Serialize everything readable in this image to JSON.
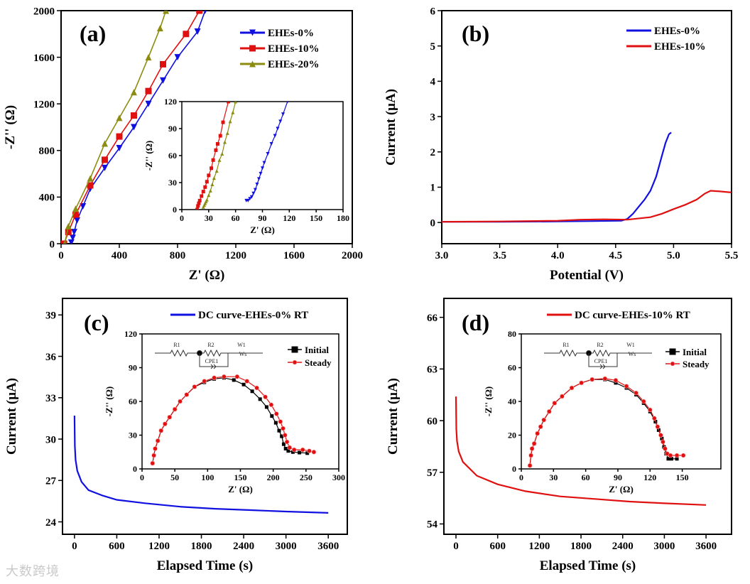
{
  "watermark": "大数跨境",
  "circuit_labels": {
    "r1": "R1",
    "r2": "R2",
    "w1": "W1",
    "cpe": "CPE1",
    "ws": "Ws"
  },
  "chart_data": [
    {
      "id": "a",
      "type": "line",
      "panel_label": "(a)",
      "xlabel": "Z' (Ω)",
      "ylabel": "-Z'' (Ω)",
      "xlim": [
        0,
        2000
      ],
      "ylim": [
        0,
        2000
      ],
      "xticks": [
        "0",
        "400",
        "800",
        "1200",
        "1600",
        "2000"
      ],
      "yticks": [
        "0",
        "400",
        "800",
        "1200",
        "1600",
        "2000"
      ],
      "legend": "top-right",
      "series": [
        {
          "name": "EHEs-0%",
          "color": "#1010e0",
          "marker": "tri-down",
          "x": [
            70,
            80,
            90,
            110,
            150,
            200,
            300,
            400,
            500,
            600,
            700,
            800,
            937,
            990
          ],
          "y": [
            10,
            50,
            100,
            200,
            320,
            470,
            650,
            820,
            1000,
            1200,
            1400,
            1600,
            1820,
            2000
          ]
        },
        {
          "name": "EHEs-10%",
          "color": "#e01010",
          "marker": "square",
          "x": [
            20,
            50,
            100,
            200,
            300,
            400,
            500,
            600,
            700,
            858,
            950
          ],
          "y": [
            0,
            100,
            250,
            500,
            720,
            920,
            1100,
            1310,
            1540,
            1800,
            2000
          ]
        },
        {
          "name": "EHEs-20%",
          "color": "#8c8c10",
          "marker": "tri-up",
          "x": [
            25,
            50,
            100,
            200,
            300,
            400,
            500,
            600,
            680,
            720
          ],
          "y": [
            0,
            150,
            300,
            560,
            860,
            1080,
            1300,
            1600,
            1850,
            2000
          ]
        }
      ]
    },
    {
      "id": "a_in",
      "type": "line",
      "inset_of": "a",
      "xlabel": "Z' (Ω)",
      "ylabel": "-Z'' (Ω)",
      "xlim": [
        0,
        180
      ],
      "ylim": [
        0,
        120
      ],
      "xticks": [
        "0",
        "30",
        "60",
        "90",
        "120",
        "150",
        "180"
      ],
      "yticks": [
        "0",
        "30",
        "60",
        "90",
        "120"
      ],
      "series": [
        {
          "name": "EHEs-0%",
          "color": "#1010e0",
          "marker": "tri-down-small",
          "x": [
            72,
            74,
            76,
            78,
            80,
            82,
            84,
            86,
            88,
            90,
            92,
            96,
            100,
            104,
            107,
            110,
            113,
            118
          ],
          "y": [
            10,
            10,
            12,
            14,
            18,
            22,
            28,
            34,
            40,
            46,
            52,
            62,
            73,
            82,
            90,
            98,
            106,
            120
          ]
        },
        {
          "name": "EHEs-10%",
          "color": "#e01010",
          "marker": "square-small",
          "x": [
            17,
            18,
            19,
            20,
            22,
            24,
            26,
            28,
            30,
            33,
            35,
            38,
            40,
            43,
            46,
            52
          ],
          "y": [
            0,
            4,
            7,
            10,
            15,
            20,
            25,
            31,
            38,
            46,
            55,
            66,
            73,
            82,
            97,
            120
          ]
        },
        {
          "name": "EHEs-20%",
          "color": "#8c8c10",
          "marker": "tri-up-small",
          "x": [
            24,
            25,
            26,
            27,
            28,
            30,
            32,
            34,
            36,
            39,
            42,
            45,
            48,
            51,
            54,
            57,
            60
          ],
          "y": [
            3,
            5,
            7,
            9,
            11,
            16,
            21,
            28,
            35,
            43,
            55,
            62,
            75,
            85,
            98,
            108,
            120
          ]
        }
      ]
    },
    {
      "id": "b",
      "type": "line",
      "panel_label": "(b)",
      "xlabel": "Potential (V)",
      "ylabel": "Current (μA)",
      "xlim": [
        3.0,
        5.5
      ],
      "ylim": [
        -0.6,
        6
      ],
      "xticks": [
        "3.0",
        "3.5",
        "4.0",
        "4.5",
        "5.0",
        "5.5"
      ],
      "yticks": [
        "0",
        "1",
        "2",
        "3",
        "4",
        "5",
        "6"
      ],
      "legend": "top-right",
      "series": [
        {
          "name": "EHEs-0%",
          "color": "#1010e0",
          "marker": "none",
          "x": [
            3.0,
            3.5,
            4.0,
            4.3,
            4.55,
            4.6,
            4.65,
            4.7,
            4.75,
            4.8,
            4.85,
            4.9,
            4.93,
            4.96,
            4.98
          ],
          "y": [
            0.02,
            0.02,
            0.03,
            0.04,
            0.05,
            0.1,
            0.25,
            0.45,
            0.65,
            0.9,
            1.3,
            1.9,
            2.25,
            2.5,
            2.55
          ]
        },
        {
          "name": "EHEs-10%",
          "color": "#e01010",
          "marker": "none",
          "x": [
            3.0,
            3.5,
            4.0,
            4.2,
            4.4,
            4.6,
            4.8,
            4.9,
            5.0,
            5.1,
            5.2,
            5.27,
            5.32,
            5.4,
            5.5
          ],
          "y": [
            0.02,
            0.03,
            0.05,
            0.08,
            0.09,
            0.08,
            0.15,
            0.25,
            0.38,
            0.5,
            0.65,
            0.82,
            0.9,
            0.88,
            0.85
          ]
        }
      ]
    },
    {
      "id": "c",
      "type": "line",
      "panel_label": "(c)",
      "xlabel": "Elapsed Time (s)",
      "ylabel": "Current (μA)",
      "xlim": [
        -170,
        3870
      ],
      "ylim": [
        23.1,
        40.2
      ],
      "xticks": [
        "0",
        "600",
        "1200",
        "1800",
        "2400",
        "3000",
        "3600"
      ],
      "yticks": [
        "24",
        "27",
        "30",
        "33",
        "36",
        "39"
      ],
      "legend": "top-right",
      "series": [
        {
          "name": "DC curve-EHEs-0%  RT",
          "color": "#1010e0",
          "marker": "none",
          "x": [
            0,
            5,
            15,
            40,
            100,
            200,
            400,
            600,
            1000,
            1500,
            2000,
            2500,
            3000,
            3600
          ],
          "y": [
            31.7,
            29.5,
            28.5,
            27.7,
            26.9,
            26.3,
            25.9,
            25.6,
            25.35,
            25.1,
            24.95,
            24.85,
            24.75,
            24.65
          ]
        }
      ]
    },
    {
      "id": "c_in",
      "type": "line",
      "inset_of": "c",
      "xlabel": "Z' (Ω)",
      "ylabel": "-Z'' (Ω)",
      "xlim": [
        0,
        300
      ],
      "ylim": [
        0,
        120
      ],
      "xticks": [
        "0",
        "50",
        "100",
        "150",
        "200",
        "250",
        "300"
      ],
      "yticks": [
        "0",
        "30",
        "60",
        "90",
        "120"
      ],
      "legend": "top-right",
      "circuit": true,
      "series": [
        {
          "name": "Initial",
          "color": "#000000",
          "marker": "square-small",
          "x": [
            16,
            18,
            20,
            24,
            29,
            35,
            42,
            50,
            58,
            68,
            80,
            95,
            110,
            125,
            140,
            155,
            168,
            180,
            190,
            198,
            204,
            209,
            213,
            216,
            219,
            223,
            230,
            240,
            252
          ],
          "y": [
            5,
            12,
            18,
            25,
            34,
            40,
            46,
            53,
            60,
            66,
            73,
            77,
            80,
            81,
            79,
            75,
            69,
            62,
            55,
            47,
            41,
            34,
            29,
            22,
            18,
            16,
            15,
            14.5,
            14
          ]
        },
        {
          "name": "Steady",
          "color": "#e01010",
          "marker": "circle",
          "x": [
            16,
            18,
            20,
            24,
            29,
            35,
            42,
            50,
            58,
            68,
            80,
            95,
            110,
            125,
            145,
            160,
            175,
            188,
            197,
            205,
            211,
            215,
            218,
            221,
            225,
            232,
            245,
            255,
            262
          ],
          "y": [
            5,
            12,
            18,
            25,
            34,
            40,
            46,
            53,
            60,
            66,
            73,
            78,
            81,
            82,
            82,
            78,
            72,
            64,
            57,
            49,
            42,
            36,
            30,
            24,
            19,
            17,
            17,
            16,
            15
          ]
        }
      ]
    },
    {
      "id": "d",
      "type": "line",
      "panel_label": "(d)",
      "xlabel": "Elapsed Time (s)",
      "ylabel": "Current (μA)",
      "xlim": [
        -174,
        3967
      ],
      "ylim": [
        53.4,
        67.1
      ],
      "xticks": [
        "0",
        "600",
        "1200",
        "1800",
        "2400",
        "3000",
        "3600"
      ],
      "yticks": [
        "54",
        "57",
        "60",
        "63",
        "66"
      ],
      "legend": "top-right",
      "series": [
        {
          "name": "DC curve-EHEs-10%  RT",
          "color": "#e01010",
          "marker": "none",
          "x": [
            0,
            5,
            15,
            40,
            100,
            300,
            600,
            1000,
            1500,
            2000,
            2500,
            3000,
            3600
          ],
          "y": [
            61.4,
            59.5,
            58.8,
            58.2,
            57.6,
            56.8,
            56.3,
            55.9,
            55.6,
            55.45,
            55.3,
            55.2,
            55.1
          ]
        }
      ]
    },
    {
      "id": "d_in",
      "type": "line",
      "inset_of": "d",
      "xlabel": "Z' (Ω)",
      "ylabel": "-Z'' (Ω)",
      "xlim": [
        0,
        186
      ],
      "ylim": [
        0,
        80
      ],
      "xticks": [
        "0",
        "30",
        "60",
        "90",
        "120",
        "150"
      ],
      "yticks": [
        "0",
        "20",
        "40",
        "60",
        "80"
      ],
      "legend": "top-right",
      "circuit": true,
      "series": [
        {
          "name": "Initial",
          "color": "#000000",
          "marker": "square-small",
          "x": [
            8,
            9,
            10,
            12,
            15,
            18,
            21,
            26,
            31,
            38,
            47,
            56,
            66,
            78,
            88,
            98,
            107,
            114,
            120,
            125,
            128,
            131,
            133,
            135,
            137,
            140,
            145
          ],
          "y": [
            2,
            8,
            12,
            15,
            21,
            25,
            29,
            34,
            39,
            43,
            48,
            51,
            53,
            53,
            51,
            48,
            44,
            39,
            34,
            28,
            23,
            18,
            13,
            9,
            6,
            6,
            6
          ]
        },
        {
          "name": "Steady",
          "color": "#e01010",
          "marker": "circle",
          "x": [
            8,
            9,
            10,
            12,
            15,
            18,
            21,
            26,
            31,
            38,
            47,
            56,
            66,
            78,
            88,
            98,
            107,
            114,
            120,
            124,
            127,
            130,
            132,
            134,
            136,
            139,
            145,
            151
          ],
          "y": [
            2,
            8,
            12,
            15,
            21,
            25,
            29,
            34,
            39,
            43,
            48,
            51,
            53,
            53.5,
            52.5,
            49,
            45,
            40,
            35,
            30,
            25,
            20,
            16,
            12,
            9,
            8,
            8,
            8
          ]
        }
      ]
    }
  ]
}
